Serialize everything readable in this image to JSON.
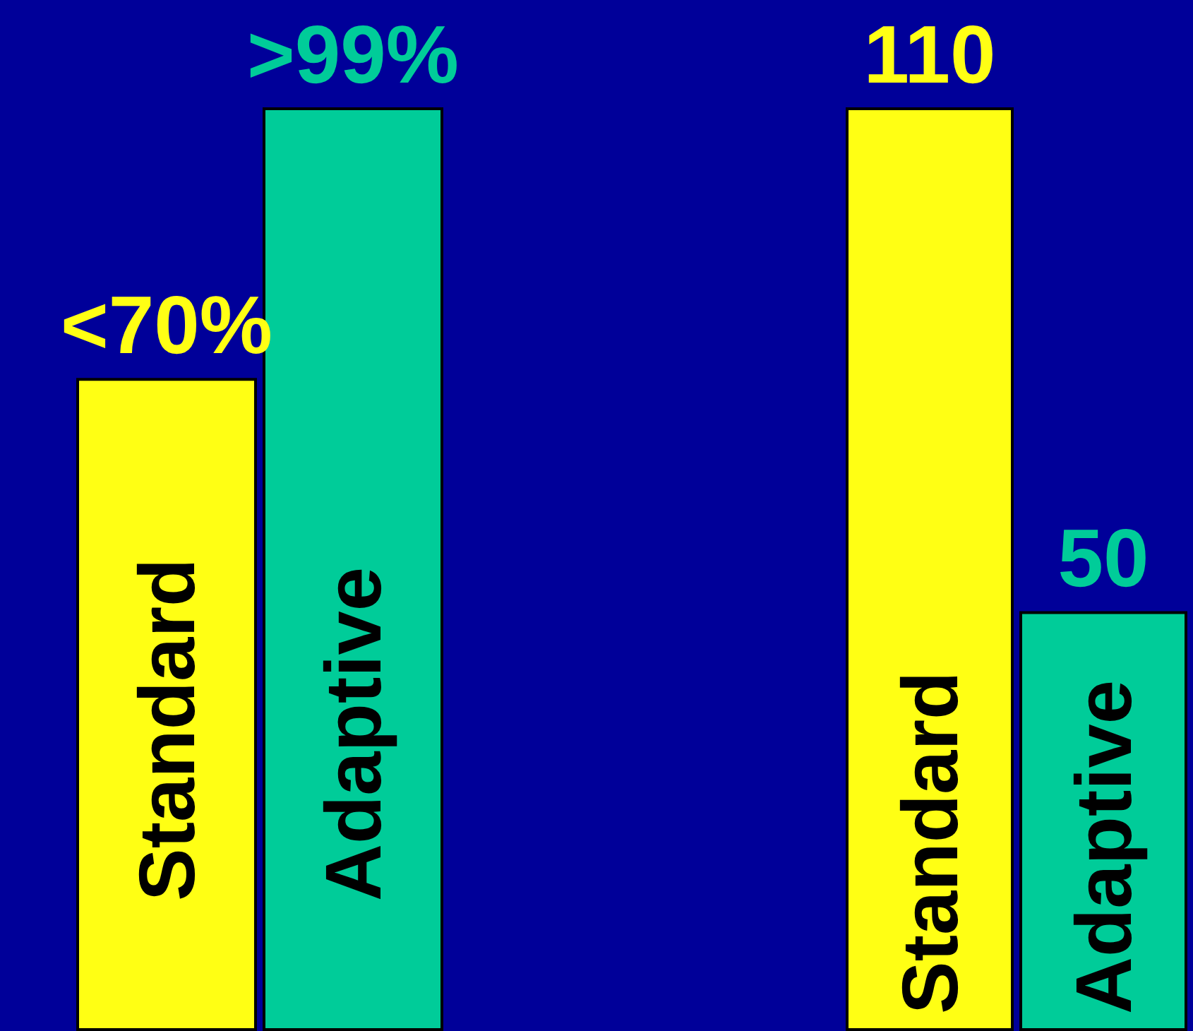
{
  "chart_data": [
    {
      "type": "bar",
      "categories": [
        "Standard",
        "Adaptive"
      ],
      "values": [
        70,
        99
      ],
      "value_labels": [
        "<70%",
        ">99%"
      ],
      "colors": [
        "#ffff14",
        "#00cc99"
      ]
    },
    {
      "type": "bar",
      "categories": [
        "Standard",
        "Adaptive"
      ],
      "values": [
        110,
        50
      ],
      "value_labels": [
        "110",
        "50"
      ],
      "colors": [
        "#ffff14",
        "#00cc99"
      ]
    }
  ]
}
